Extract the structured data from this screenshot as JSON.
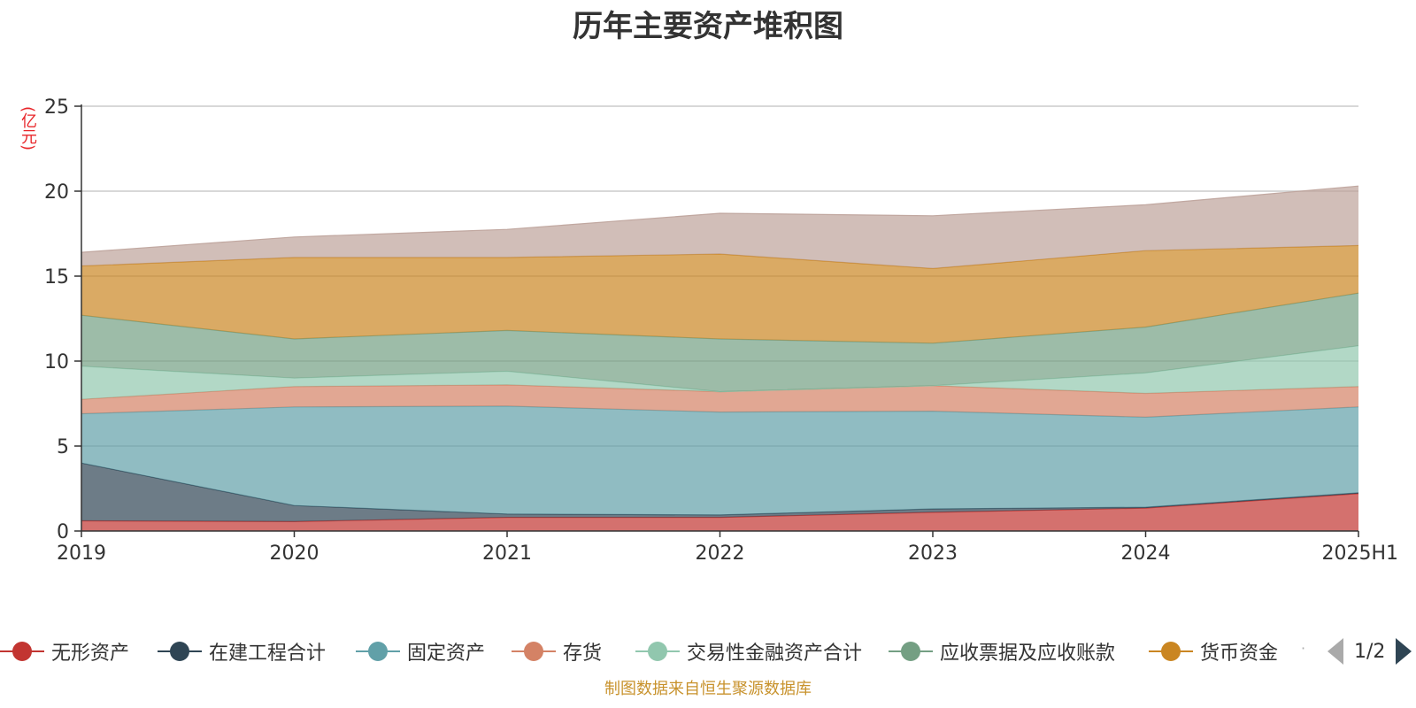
{
  "chart_data": {
    "type": "area",
    "stacked": true,
    "title": "历年主要资产堆积图",
    "y_unit": "(亿元)",
    "ylim": [
      0,
      25
    ],
    "y_ticks": [
      0,
      5,
      10,
      15,
      20,
      25
    ],
    "grid": true,
    "legend_position": "bottom",
    "categories": [
      "2019",
      "2020",
      "2021",
      "2022",
      "2023",
      "2024",
      "2025H1"
    ],
    "series": [
      {
        "name": "无形资产",
        "color": "#c23531",
        "values": [
          0.6,
          0.55,
          0.8,
          0.8,
          1.1,
          1.35,
          2.2
        ]
      },
      {
        "name": "在建工程合计",
        "color": "#2f4554",
        "values": [
          3.4,
          0.95,
          0.2,
          0.15,
          0.2,
          0.05,
          0.05
        ]
      },
      {
        "name": "固定资产",
        "color": "#61a0a8",
        "values": [
          2.9,
          5.8,
          6.35,
          6.05,
          5.75,
          5.3,
          5.05
        ]
      },
      {
        "name": "存货",
        "color": "#d48265",
        "values": [
          0.85,
          1.2,
          1.25,
          1.2,
          1.5,
          1.4,
          1.2
        ]
      },
      {
        "name": "交易性金融资产合计",
        "color": "#91c7ae",
        "values": [
          1.95,
          0.5,
          0.8,
          0.0,
          0.0,
          1.2,
          2.4
        ]
      },
      {
        "name": "应收票据及应收账款",
        "color": "#749f83",
        "values": [
          3.0,
          2.3,
          2.4,
          3.1,
          2.5,
          2.7,
          3.1
        ]
      },
      {
        "name": "货币资金",
        "color": "#ca8622",
        "values": [
          2.9,
          4.8,
          4.3,
          5.0,
          4.4,
          4.5,
          2.8
        ]
      },
      {
        "name": "",
        "color": "#bda29a",
        "values": [
          0.8,
          1.2,
          1.65,
          2.4,
          3.1,
          2.7,
          3.5
        ]
      }
    ]
  },
  "legend": {
    "page_indicator": "1/2",
    "overflow_mark": "·"
  },
  "source_note": "制图数据来自恒生聚源数据库"
}
